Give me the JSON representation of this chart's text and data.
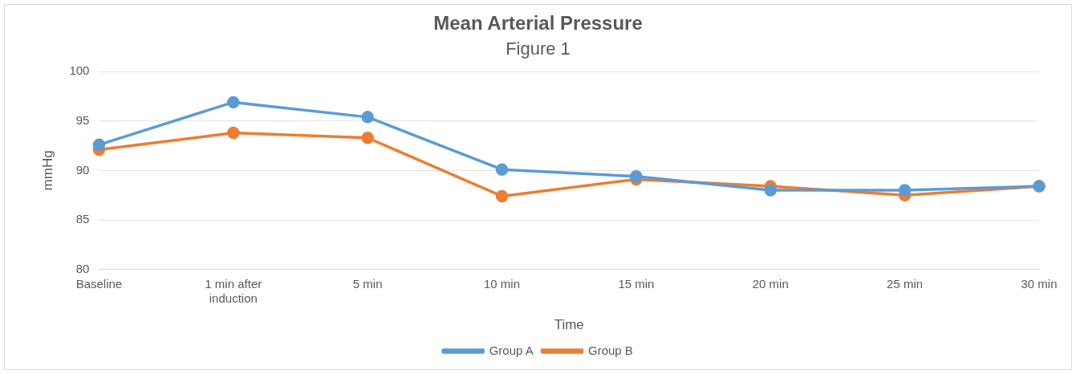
{
  "chart_data": {
    "type": "line",
    "title": "Mean Arterial Pressure",
    "subtitle": "Figure 1",
    "xlabel": "Time",
    "ylabel": "mmHg",
    "categories": [
      "Baseline",
      "1 min after induction",
      "5 min",
      "10 min",
      "15 min",
      "20 min",
      "25 min",
      "30 min"
    ],
    "series": [
      {
        "name": "Group A",
        "color": "#5b9bd5",
        "values": [
          92.6,
          96.9,
          95.4,
          90.1,
          89.4,
          88.0,
          88.0,
          88.4
        ]
      },
      {
        "name": "Group B",
        "color": "#ed7d31",
        "values": [
          92.1,
          93.8,
          93.3,
          87.4,
          89.1,
          88.4,
          87.5,
          88.4
        ]
      }
    ],
    "ylim": [
      80,
      100
    ],
    "yticks": [
      80,
      85,
      90,
      95,
      100
    ],
    "grid": "y",
    "legend": "bottom",
    "marker": "circle",
    "line_style": "solid"
  }
}
